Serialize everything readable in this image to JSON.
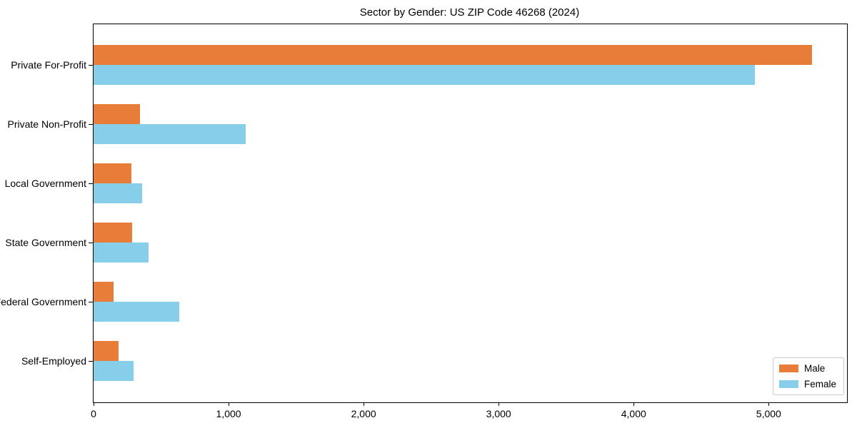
{
  "chart_data": {
    "type": "bar",
    "orientation": "horizontal",
    "title": "Sector by Gender: US ZIP Code 46268 (2024)",
    "xlabel": "",
    "ylabel": "",
    "categories": [
      "Private For-Profit",
      "Private Non-Profit",
      "Local Government",
      "State Government",
      "Federal Government",
      "Self-Employed"
    ],
    "series": [
      {
        "name": "Male",
        "color": "#e87d3a",
        "values": [
          5320,
          345,
          280,
          285,
          150,
          185
        ]
      },
      {
        "name": "Female",
        "color": "#87ceeb",
        "values": [
          4900,
          1125,
          360,
          405,
          635,
          295
        ]
      }
    ],
    "xlim": [
      0,
      5580
    ],
    "xticks": {
      "values": [
        0,
        1000,
        2000,
        3000,
        4000,
        5000
      ],
      "labels": [
        "0",
        "1,000",
        "2,000",
        "3,000",
        "4,000",
        "5,000"
      ]
    },
    "grid": false,
    "legend_position": "lower right"
  }
}
